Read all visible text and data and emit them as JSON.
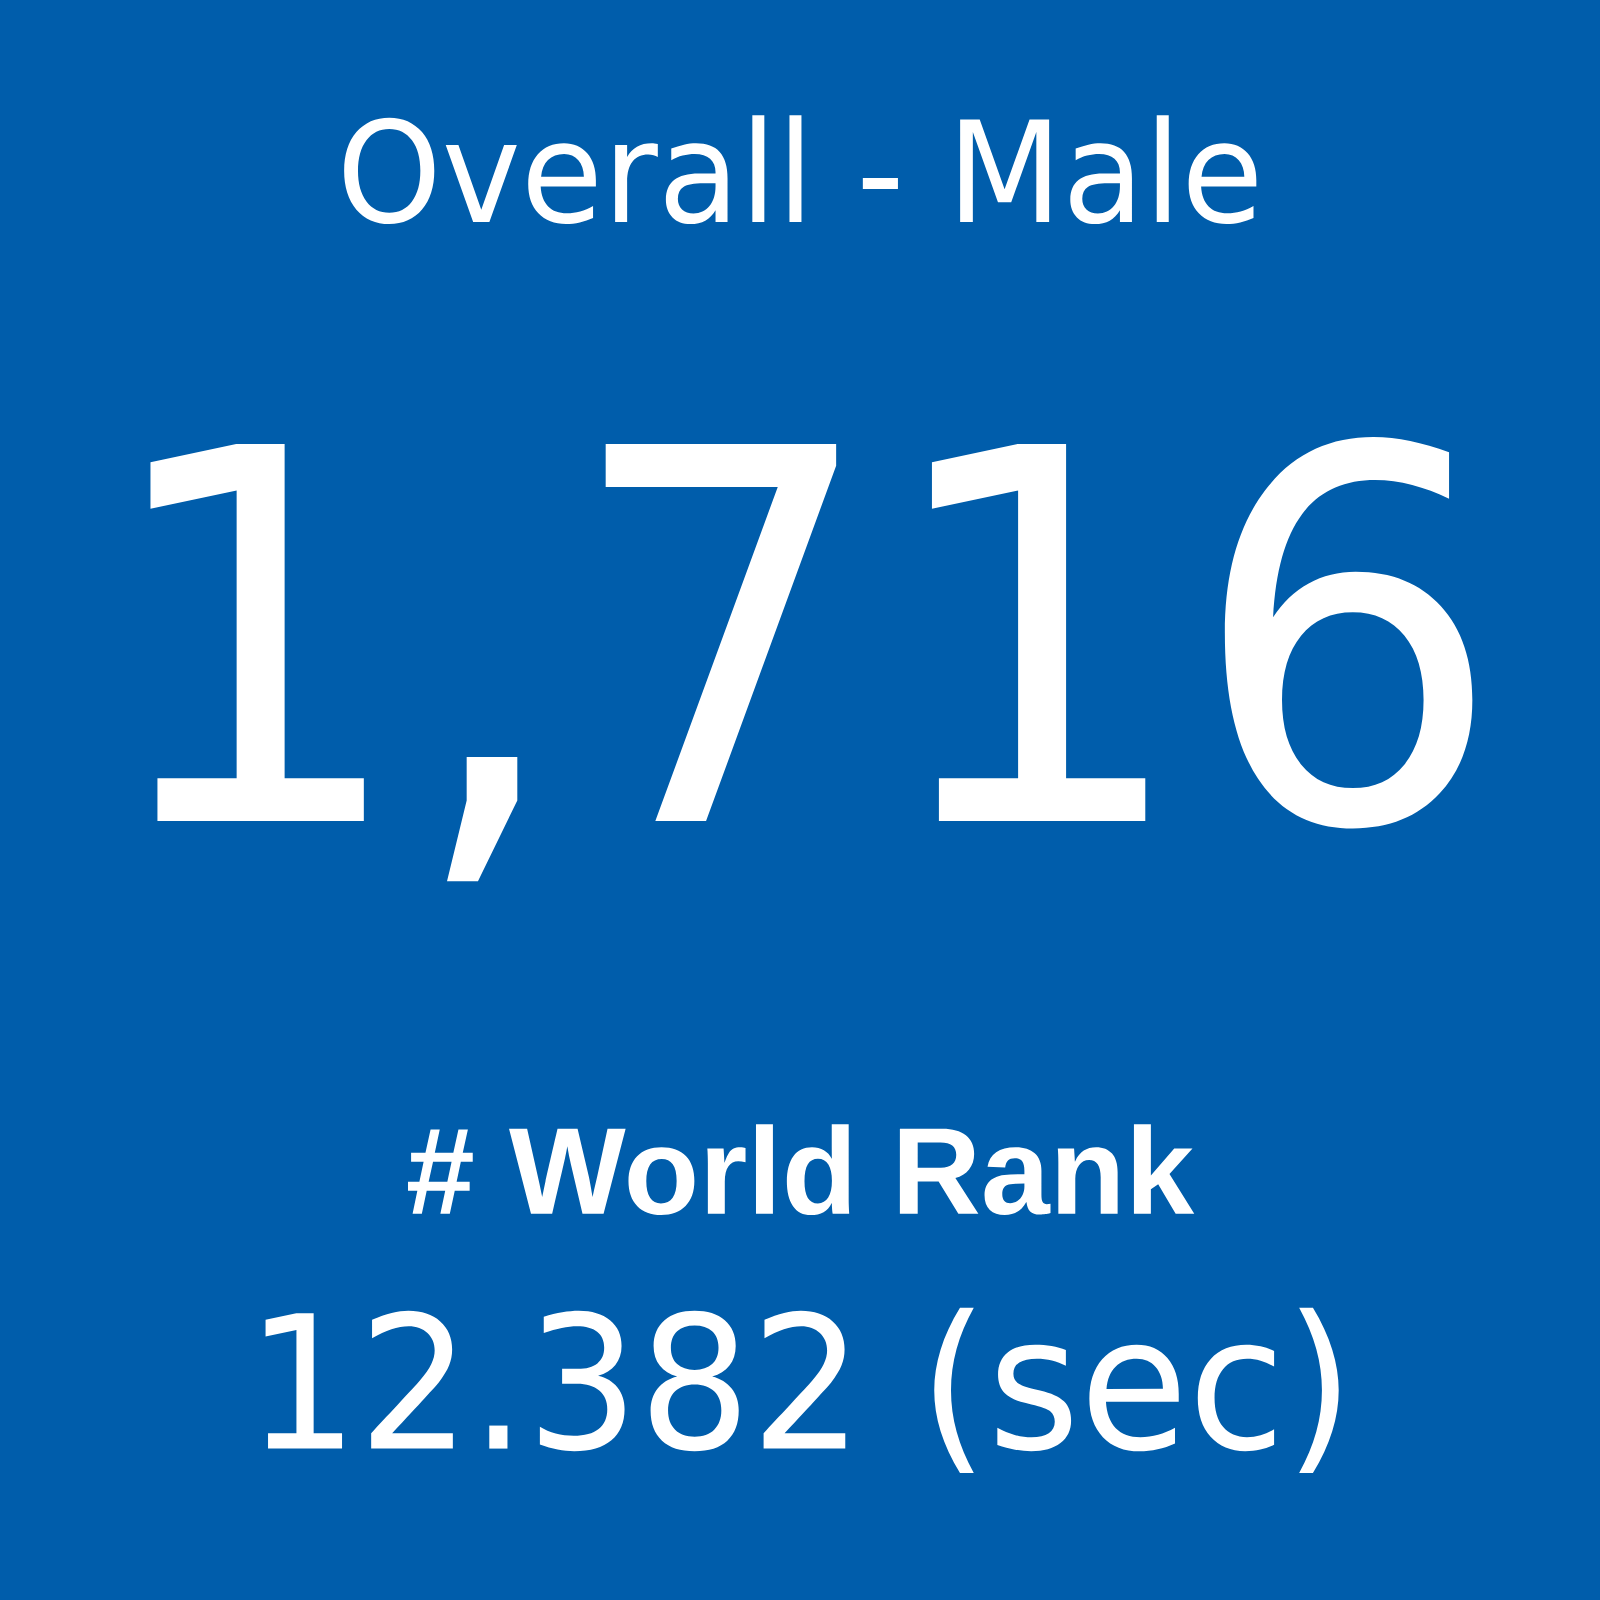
{
  "chart_data": {
    "type": "other",
    "title": "Overall - Male",
    "categories": [
      "# World Rank",
      "(sec)"
    ],
    "values": [
      1716,
      12.382
    ],
    "value_labels": [
      "1,716",
      "12.382"
    ]
  }
}
